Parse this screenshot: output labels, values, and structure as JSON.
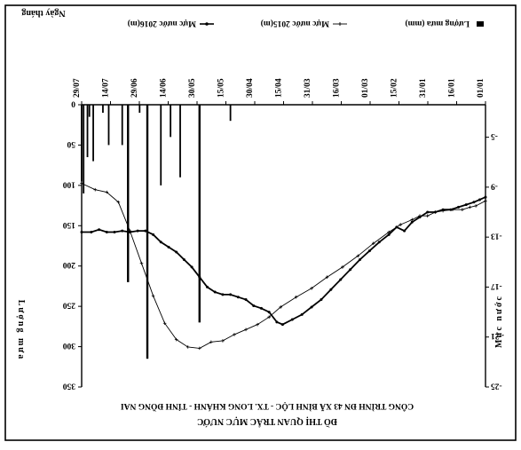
{
  "chart_data": {
    "type": "bar+line",
    "orientation": "rotated-180",
    "title": "ĐỒ THỊ QUAN TRẮC MỰC NƯỚC",
    "subtitle": "CÔNG TRÌNH ĐN 43 XÃ BÌNH LỘC - TX. LONG KHÁNH - TỈNH ĐỒNG NAI",
    "xlabel": "Ngày tháng",
    "y_left_label": "Lượng mưa",
    "y_right_label": "Mực nước",
    "x_ticks": [
      "01/01",
      "16/01",
      "31/01",
      "15/02",
      "01/03",
      "16/03",
      "31/03",
      "15/04",
      "30/04",
      "15/05",
      "30/05",
      "14/06",
      "29/06",
      "14/07",
      "29/07"
    ],
    "rain_ticks": [
      "0",
      "50",
      "100",
      "150",
      "200",
      "250",
      "300",
      "350"
    ],
    "rain_ylim": [
      0,
      350
    ],
    "level_ticks": [
      "-25",
      "-21",
      "-17",
      "-13",
      "-9",
      "-5"
    ],
    "level_ylim": [
      -25,
      -2.4
    ],
    "legend": [
      {
        "label": "Lượng mưa (mm)",
        "marker": "bar"
      },
      {
        "label": "Mực nước 2015(m)",
        "marker": "line-plus"
      },
      {
        "label": "Mực nước 2016(m)",
        "marker": "line-dot"
      }
    ],
    "rain_bars": {
      "name": "Lượng mưa (mm)",
      "day": [
        132,
        148,
        158,
        163,
        168,
        175,
        179,
        185,
        188,
        195,
        198,
        203,
        205,
        206,
        208,
        209
      ],
      "value": [
        20,
        270,
        90,
        40,
        100,
        315,
        10,
        220,
        50,
        50,
        10,
        70,
        15,
        65,
        110,
        95
      ]
    },
    "series": [
      {
        "name": "Mực nước 2015(m)",
        "day": [
          0,
          5,
          8,
          12,
          17,
          22,
          26,
          30,
          34,
          38,
          44,
          50,
          58,
          66,
          74,
          82,
          90,
          98,
          106,
          112,
          118,
          124,
          130,
          136,
          142,
          148,
          154,
          160,
          166,
          172,
          178,
          184,
          190,
          196,
          202,
          209
        ],
        "value": [
          -10.1,
          -10.5,
          -10.6,
          -10.8,
          -10.8,
          -10.9,
          -11.0,
          -11.3,
          -11.3,
          -11.6,
          -12.0,
          -12.6,
          -13.5,
          -14.5,
          -15.4,
          -16.2,
          -17.1,
          -17.8,
          -18.6,
          -19.4,
          -20.0,
          -20.4,
          -20.8,
          -21.3,
          -21.4,
          -21.9,
          -21.8,
          -21.2,
          -19.9,
          -17.7,
          -15.1,
          -12.5,
          -10.2,
          -9.4,
          -9.2,
          -8.7
        ]
      },
      {
        "name": "Mực nước 2016(m)",
        "day": [
          0,
          3,
          6,
          10,
          14,
          18,
          22,
          26,
          30,
          34,
          38,
          42,
          46,
          50,
          55,
          60,
          65,
          70,
          75,
          80,
          85,
          90,
          95,
          100,
          105,
          108,
          112,
          116,
          120,
          124,
          128,
          132,
          136,
          140,
          144,
          148,
          152,
          156,
          160,
          164,
          168,
          172,
          176,
          180,
          184,
          188,
          192,
          196,
          200,
          204,
          209
        ],
        "value": [
          -9.8,
          -10.0,
          -10.2,
          -10.4,
          -10.6,
          -10.8,
          -10.8,
          -11.0,
          -11.0,
          -11.4,
          -11.8,
          -12.5,
          -12.2,
          -12.8,
          -13.4,
          -14.1,
          -14.8,
          -15.6,
          -16.4,
          -17.2,
          -18.0,
          -18.6,
          -19.2,
          -19.6,
          -20.0,
          -19.8,
          -19.0,
          -18.7,
          -18.5,
          -18.0,
          -17.8,
          -17.6,
          -17.6,
          -17.4,
          -17.0,
          -16.2,
          -15.4,
          -14.8,
          -14.2,
          -13.8,
          -13.4,
          -12.8,
          -12.5,
          -12.5,
          -12.6,
          -12.5,
          -12.6,
          -12.6,
          -12.4,
          -12.6,
          -12.6
        ]
      }
    ]
  }
}
